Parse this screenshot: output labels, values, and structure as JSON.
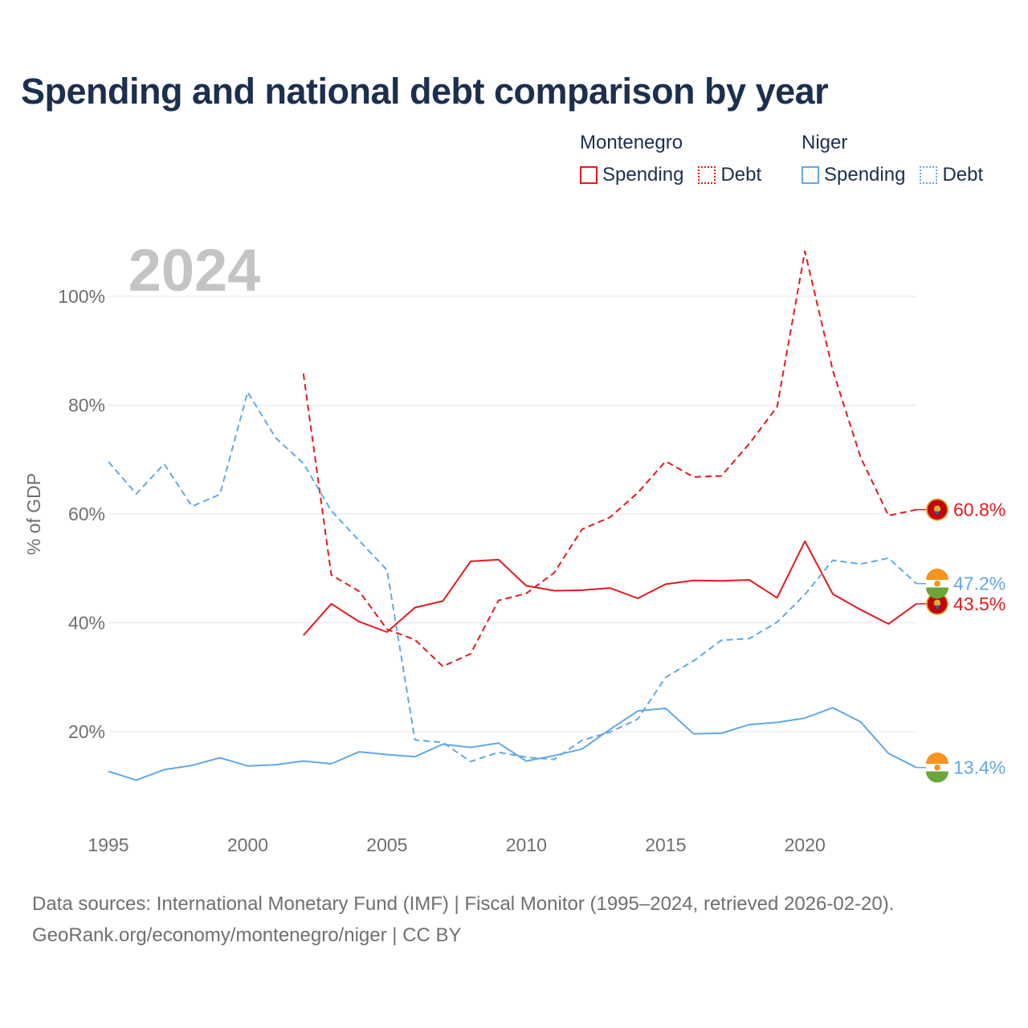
{
  "title": "Spending and national debt comparison by year",
  "legend": {
    "montenegro": {
      "name": "Montenegro",
      "spending": "Spending",
      "debt": "Debt"
    },
    "niger": {
      "name": "Niger",
      "spending": "Spending",
      "debt": "Debt"
    }
  },
  "year_label": "2024",
  "colors": {
    "montenegro": "#e8181e",
    "niger": "#63a8e4",
    "title": "#1c2f4f",
    "axis_text": "#6f6f6f",
    "year": "#c4c4c4",
    "grid": "#e6e6e6"
  },
  "sources": {
    "line1": "Data sources: International Monetary Fund (IMF) | Fiscal Monitor (1995–2024, retrieved 2026-02-20).",
    "line2": "GeoRank.org/economy/montenegro/niger | CC BY"
  },
  "chart_data": {
    "type": "line",
    "title": "Spending and national debt comparison by year",
    "xlabel": "",
    "ylabel": "% of GDP",
    "xlim": [
      1995,
      2024
    ],
    "ylim": [
      5,
      110
    ],
    "x_ticks": [
      1995,
      2000,
      2005,
      2010,
      2015,
      2020
    ],
    "x_tick_labels": [
      "1995",
      "2000",
      "2005",
      "2010",
      "2015",
      "2020"
    ],
    "y_ticks": [
      20,
      40,
      60,
      80,
      100
    ],
    "y_tick_labels": [
      "20%",
      "40%",
      "60%",
      "80%",
      "100%"
    ],
    "grid": true,
    "series": [
      {
        "name": "Montenegro Spending",
        "country": "Montenegro",
        "measure": "Spending",
        "style": "solid",
        "color": "#e8181e",
        "x": [
          2002,
          2003,
          2004,
          2005,
          2006,
          2007,
          2008,
          2009,
          2010,
          2011,
          2012,
          2013,
          2014,
          2015,
          2016,
          2017,
          2018,
          2019,
          2020,
          2021,
          2022,
          2023,
          2024
        ],
        "values": [
          37.7,
          43.5,
          40.2,
          38.3,
          42.8,
          44.0,
          51.3,
          51.6,
          46.8,
          45.9,
          46.0,
          46.4,
          44.5,
          47.1,
          47.8,
          47.7,
          47.9,
          44.6,
          55.0,
          45.3,
          42.4,
          39.8,
          43.5
        ],
        "end_label": "43.5%"
      },
      {
        "name": "Montenegro Debt",
        "country": "Montenegro",
        "measure": "Debt",
        "style": "dashed",
        "color": "#e8181e",
        "x": [
          2002,
          2003,
          2004,
          2005,
          2006,
          2007,
          2008,
          2009,
          2010,
          2011,
          2012,
          2013,
          2014,
          2015,
          2016,
          2017,
          2018,
          2019,
          2020,
          2021,
          2022,
          2023,
          2024
        ],
        "values": [
          85.8,
          48.8,
          45.8,
          38.8,
          36.9,
          32.0,
          34.3,
          44.1,
          45.4,
          49.2,
          57.2,
          59.4,
          63.9,
          69.7,
          66.8,
          67.0,
          72.9,
          79.7,
          108.3,
          86.4,
          70.4,
          59.7,
          60.8
        ],
        "end_label": "60.8%"
      },
      {
        "name": "Niger Spending",
        "country": "Niger",
        "measure": "Spending",
        "style": "solid",
        "color": "#63a8e4",
        "x": [
          1995,
          1996,
          1997,
          1998,
          1999,
          2000,
          2001,
          2002,
          2003,
          2004,
          2005,
          2006,
          2007,
          2008,
          2009,
          2010,
          2011,
          2012,
          2013,
          2014,
          2015,
          2016,
          2017,
          2018,
          2019,
          2020,
          2021,
          2022,
          2023,
          2024
        ],
        "values": [
          12.7,
          11.1,
          13.0,
          13.8,
          15.2,
          13.7,
          13.9,
          14.6,
          14.1,
          16.3,
          15.8,
          15.4,
          17.7,
          17.1,
          17.9,
          14.6,
          15.6,
          16.8,
          20.4,
          23.8,
          24.3,
          19.6,
          19.7,
          21.3,
          21.7,
          22.5,
          24.4,
          21.8,
          16.0,
          13.4
        ],
        "end_label": "13.4%"
      },
      {
        "name": "Niger Debt",
        "country": "Niger",
        "measure": "Debt",
        "style": "dashed",
        "color": "#63a8e4",
        "x": [
          1995,
          1996,
          1997,
          1998,
          1999,
          2000,
          2001,
          2002,
          2003,
          2004,
          2005,
          2006,
          2007,
          2008,
          2009,
          2010,
          2011,
          2012,
          2013,
          2014,
          2015,
          2016,
          2017,
          2018,
          2019,
          2020,
          2021,
          2022,
          2023,
          2024
        ],
        "values": [
          69.6,
          63.7,
          69.2,
          61.4,
          63.6,
          82.4,
          74.0,
          69.3,
          60.6,
          55.1,
          49.7,
          18.5,
          18.0,
          14.5,
          16.2,
          15.3,
          14.9,
          18.4,
          19.9,
          22.3,
          30.0,
          33.0,
          36.8,
          37.1,
          40.1,
          45.2,
          51.5,
          50.8,
          51.9,
          47.2
        ],
        "end_label": "47.2%"
      }
    ]
  }
}
